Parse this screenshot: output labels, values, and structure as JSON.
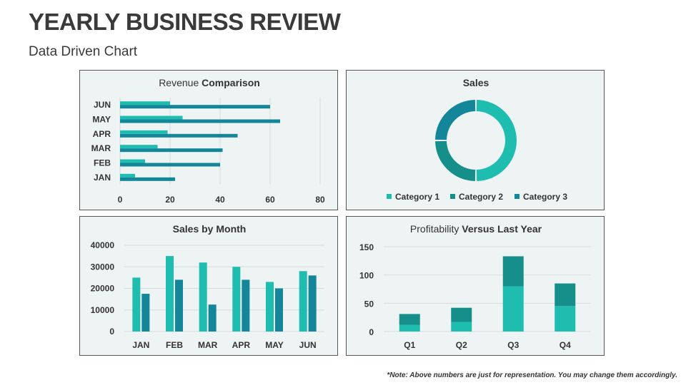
{
  "page": {
    "title": "YEARLY BUSINESS REVIEW",
    "subtitle": "Data Driven Chart",
    "note": "*Note: Above numbers are just for representation. You may change them accordingly."
  },
  "colors": {
    "teal_light": "#1fbcb0",
    "teal_mid": "#168f8a",
    "teal_dark": "#13869a",
    "panel_bg": "#eef4f3"
  },
  "chart_data": [
    {
      "id": "revenue",
      "type": "bar",
      "orientation": "horizontal",
      "title_parts": [
        "Revenue ",
        "Comparison"
      ],
      "categories": [
        "JAN",
        "FEB",
        "MAR",
        "APR",
        "MAY",
        "JUN"
      ],
      "series": [
        {
          "values": [
            6,
            10,
            15,
            19,
            25,
            20
          ],
          "color": "#1fbcb0"
        },
        {
          "values": [
            22,
            40,
            41,
            47,
            64,
            60
          ],
          "color": "#13869a"
        }
      ],
      "xticks": [
        0,
        20,
        40,
        60,
        80
      ],
      "xlim": [
        0,
        80
      ],
      "grid": true
    },
    {
      "id": "sales",
      "type": "pie",
      "style": "donut",
      "title": "Sales",
      "labels": [
        "Category 1",
        "Category 2",
        "Category 3"
      ],
      "values": [
        50,
        25,
        25
      ],
      "colors": [
        "#1fbcb0",
        "#168f8a",
        "#13869a"
      ],
      "legend": "bottom"
    },
    {
      "id": "salesmonth",
      "type": "bar",
      "title": "Sales by Month",
      "categories": [
        "JAN",
        "FEB",
        "MAR",
        "APR",
        "MAY",
        "JUN"
      ],
      "series": [
        {
          "values": [
            25000,
            35000,
            32000,
            30000,
            23000,
            28000
          ],
          "color": "#1fbcb0"
        },
        {
          "values": [
            17500,
            24000,
            12500,
            24000,
            20000,
            26000
          ],
          "color": "#13869a"
        }
      ],
      "yticks": [
        0,
        10000,
        20000,
        30000,
        40000
      ],
      "ytick_labels": [
        "0",
        "10000",
        "20000",
        "30000",
        "40000"
      ],
      "ylim": [
        0,
        40000
      ],
      "grid": true
    },
    {
      "id": "profit",
      "type": "bar",
      "stacked": true,
      "title_parts": [
        "Profitability ",
        "Versus Last Year"
      ],
      "categories": [
        "Q1",
        "Q2",
        "Q3",
        "Q4"
      ],
      "series": [
        {
          "values": [
            12,
            17,
            80,
            45
          ],
          "color": "#1fbcb0"
        },
        {
          "values": [
            19,
            25,
            53,
            40
          ],
          "color": "#168f8a"
        }
      ],
      "yticks": [
        0,
        50,
        100,
        150
      ],
      "ylim": [
        0,
        150
      ],
      "grid": true
    }
  ]
}
